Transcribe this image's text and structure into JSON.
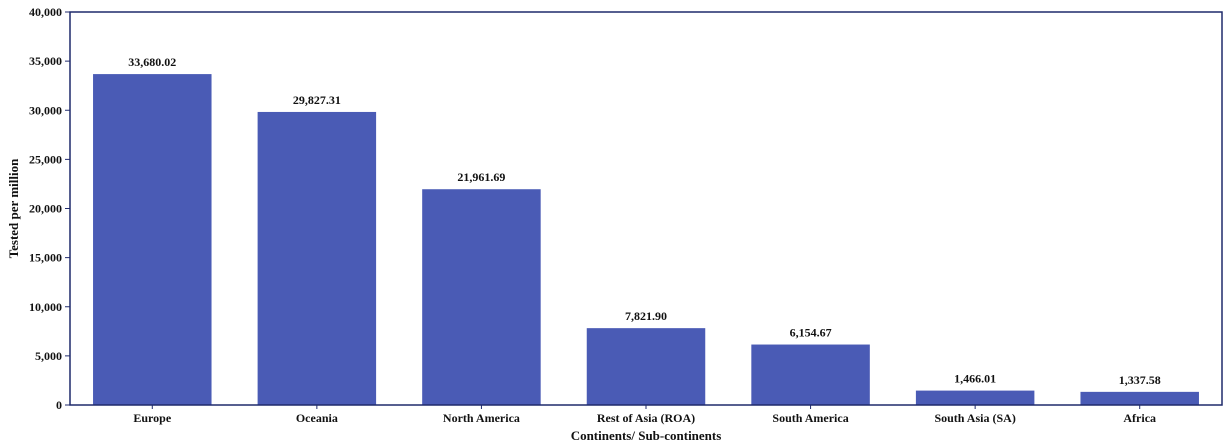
{
  "chart_data": {
    "type": "bar",
    "title": "",
    "xlabel": "Continents/ Sub-continents",
    "ylabel": "Tested per million",
    "categories": [
      "Europe",
      "Oceania",
      "North America",
      "Rest of Asia (ROA)",
      "South America",
      "South Asia (SA)",
      "Africa"
    ],
    "values": [
      33680.02,
      29827.31,
      21961.69,
      7821.9,
      6154.67,
      1466.01,
      1337.58
    ],
    "value_labels": [
      "33,680.02",
      "29,827.31",
      "21,961.69",
      "7,821.90",
      "6,154.67",
      "1,466.01",
      "1,337.58"
    ],
    "ylim": [
      0,
      40000
    ],
    "yticks": [
      0,
      5000,
      10000,
      15000,
      20000,
      25000,
      30000,
      35000,
      40000
    ],
    "ytick_labels": [
      "0",
      "5,000",
      "10,000",
      "15,000",
      "20,000",
      "25,000",
      "30,000",
      "35,000",
      "40,000"
    ],
    "grid": false,
    "legend": "none",
    "colors": {
      "bar": "#4a5bb5",
      "frame": "#1f2a6b"
    }
  }
}
